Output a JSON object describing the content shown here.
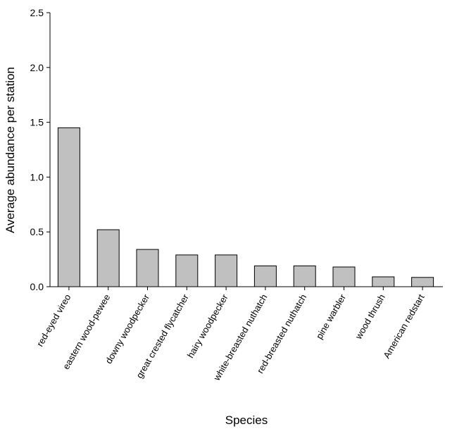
{
  "chart_data": {
    "type": "bar",
    "title": "",
    "xlabel": "Species",
    "ylabel": "Average abundance per station",
    "ylim": [
      0,
      2.5
    ],
    "yticks": [
      "0.0",
      "0.5",
      "1.0",
      "1.5",
      "2.0",
      "2.5"
    ],
    "categories": [
      "red-eyed vireo",
      "eastern wood-pewee",
      "downy woodpecker",
      "great crested flycatcher",
      "hairy woodpecker",
      "white-breasted nuthatch",
      "red-breasted nuthatch",
      "pine warbler",
      "wood thrush",
      "American redstart"
    ],
    "values": [
      1.45,
      0.52,
      0.34,
      0.29,
      0.29,
      0.19,
      0.19,
      0.18,
      0.09,
      0.085
    ],
    "grid": false,
    "legend": "none",
    "colors": {
      "bar_fill": "#c0c0c0",
      "bar_stroke": "#000000",
      "axis": "#000000"
    }
  }
}
